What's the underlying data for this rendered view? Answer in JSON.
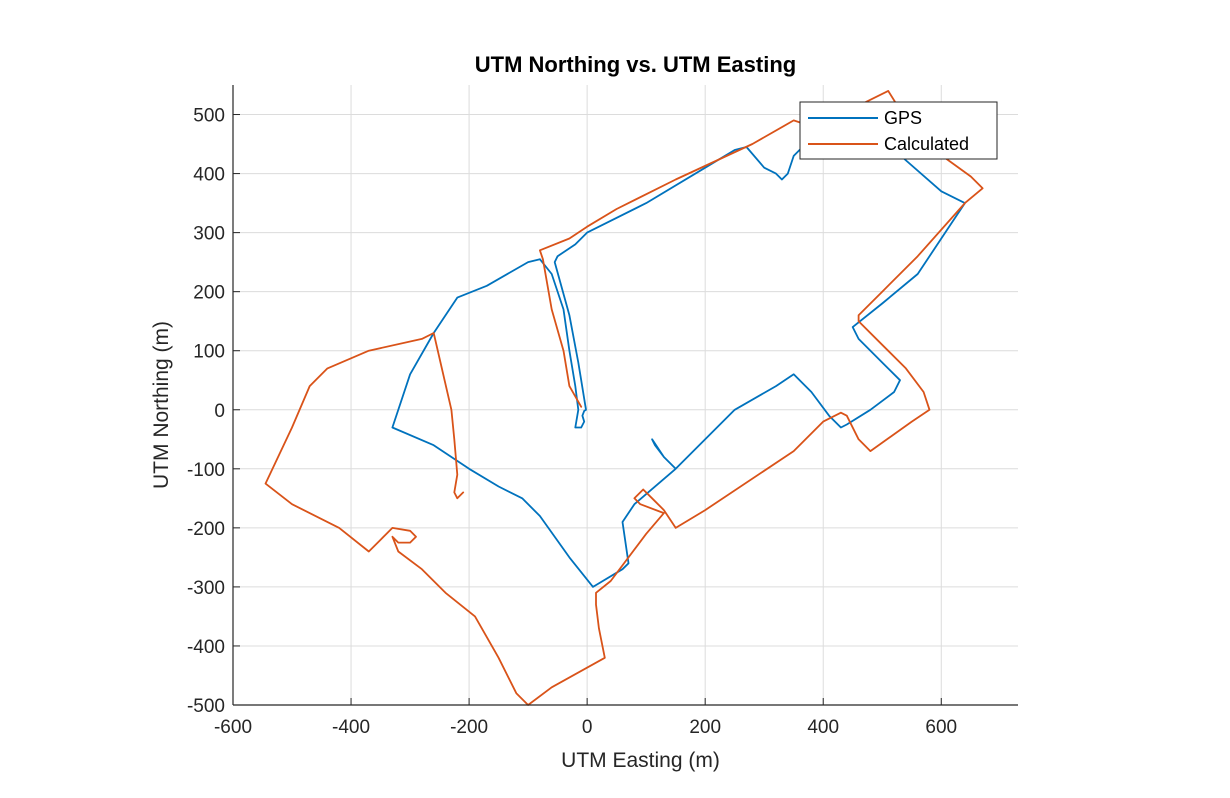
{
  "chart_data": {
    "type": "line",
    "title": "UTM Northing vs. UTM Easting",
    "xlabel": "UTM Easting (m)",
    "ylabel": "UTM Northing (m)",
    "xlim": [
      -600,
      730
    ],
    "ylim": [
      -500,
      550
    ],
    "xticks": [
      -600,
      -400,
      -200,
      0,
      200,
      400,
      600
    ],
    "yticks": [
      -500,
      -400,
      -300,
      -200,
      -100,
      0,
      100,
      200,
      300,
      400,
      500
    ],
    "grid": true,
    "legend_position": "top-right",
    "series": [
      {
        "name": "GPS",
        "color": "#0072BD",
        "points": [
          [
            -10,
            -30
          ],
          [
            -5,
            -20
          ],
          [
            -8,
            -10
          ],
          [
            -5,
            -2
          ],
          [
            -2,
            0
          ],
          [
            -10,
            50
          ],
          [
            -15,
            80
          ],
          [
            -30,
            160
          ],
          [
            -55,
            250
          ],
          [
            -50,
            260
          ],
          [
            -20,
            280
          ],
          [
            0,
            300
          ],
          [
            100,
            350
          ],
          [
            200,
            410
          ],
          [
            250,
            440
          ],
          [
            270,
            445
          ],
          [
            300,
            410
          ],
          [
            320,
            400
          ],
          [
            330,
            390
          ],
          [
            340,
            400
          ],
          [
            350,
            430
          ],
          [
            400,
            480
          ],
          [
            460,
            520
          ],
          [
            520,
            440
          ],
          [
            600,
            370
          ],
          [
            640,
            350
          ],
          [
            620,
            320
          ],
          [
            560,
            230
          ],
          [
            500,
            180
          ],
          [
            450,
            140
          ],
          [
            460,
            120
          ],
          [
            500,
            80
          ],
          [
            530,
            50
          ],
          [
            520,
            30
          ],
          [
            480,
            0
          ],
          [
            440,
            -25
          ],
          [
            430,
            -30
          ],
          [
            410,
            -10
          ],
          [
            380,
            30
          ],
          [
            350,
            60
          ],
          [
            320,
            40
          ],
          [
            250,
            0
          ],
          [
            150,
            -100
          ],
          [
            130,
            -80
          ],
          [
            110,
            -50
          ],
          [
            115,
            -60
          ],
          [
            130,
            -80
          ],
          [
            150,
            -100
          ],
          [
            80,
            -160
          ],
          [
            60,
            -190
          ],
          [
            70,
            -260
          ],
          [
            60,
            -270
          ],
          [
            10,
            -300
          ],
          [
            -30,
            -250
          ],
          [
            -80,
            -180
          ],
          [
            -110,
            -150
          ],
          [
            -150,
            -130
          ],
          [
            -200,
            -100
          ],
          [
            -260,
            -60
          ],
          [
            -330,
            -30
          ],
          [
            -300,
            60
          ],
          [
            -260,
            130
          ],
          [
            -220,
            190
          ],
          [
            -170,
            210
          ],
          [
            -100,
            250
          ],
          [
            -80,
            255
          ],
          [
            -60,
            230
          ],
          [
            -40,
            170
          ],
          [
            -30,
            100
          ],
          [
            -20,
            40
          ],
          [
            -15,
            0
          ],
          [
            -20,
            -30
          ],
          [
            -10,
            -30
          ]
        ]
      },
      {
        "name": "Calculated",
        "color": "#D95319",
        "points": [
          [
            -210,
            -140
          ],
          [
            -220,
            -150
          ],
          [
            -225,
            -140
          ],
          [
            -220,
            -110
          ],
          [
            -225,
            -50
          ],
          [
            -230,
            0
          ],
          [
            -260,
            130
          ],
          [
            -280,
            120
          ],
          [
            -370,
            100
          ],
          [
            -440,
            70
          ],
          [
            -470,
            40
          ],
          [
            -500,
            -30
          ],
          [
            -545,
            -125
          ],
          [
            -500,
            -160
          ],
          [
            -420,
            -200
          ],
          [
            -370,
            -240
          ],
          [
            -350,
            -220
          ],
          [
            -330,
            -200
          ],
          [
            -300,
            -205
          ],
          [
            -290,
            -215
          ],
          [
            -300,
            -225
          ],
          [
            -320,
            -225
          ],
          [
            -330,
            -215
          ],
          [
            -320,
            -240
          ],
          [
            -280,
            -270
          ],
          [
            -240,
            -310
          ],
          [
            -190,
            -350
          ],
          [
            -150,
            -420
          ],
          [
            -120,
            -480
          ],
          [
            -100,
            -500
          ],
          [
            -60,
            -470
          ],
          [
            30,
            -420
          ],
          [
            20,
            -370
          ],
          [
            15,
            -330
          ],
          [
            15,
            -310
          ],
          [
            40,
            -290
          ],
          [
            100,
            -210
          ],
          [
            130,
            -175
          ],
          [
            90,
            -160
          ],
          [
            80,
            -150
          ],
          [
            95,
            -135
          ],
          [
            110,
            -150
          ],
          [
            130,
            -170
          ],
          [
            150,
            -200
          ],
          [
            200,
            -170
          ],
          [
            350,
            -70
          ],
          [
            400,
            -20
          ],
          [
            430,
            -5
          ],
          [
            440,
            -10
          ],
          [
            460,
            -50
          ],
          [
            480,
            -70
          ],
          [
            550,
            -20
          ],
          [
            580,
            0
          ],
          [
            570,
            30
          ],
          [
            540,
            70
          ],
          [
            500,
            110
          ],
          [
            460,
            150
          ],
          [
            460,
            160
          ],
          [
            500,
            200
          ],
          [
            560,
            260
          ],
          [
            640,
            350
          ],
          [
            670,
            375
          ],
          [
            650,
            395
          ],
          [
            560,
            460
          ],
          [
            510,
            540
          ],
          [
            470,
            520
          ],
          [
            380,
            480
          ],
          [
            350,
            490
          ],
          [
            280,
            450
          ],
          [
            150,
            390
          ],
          [
            50,
            340
          ],
          [
            0,
            310
          ],
          [
            -30,
            290
          ],
          [
            -80,
            270
          ],
          [
            -75,
            255
          ],
          [
            -60,
            170
          ],
          [
            -40,
            100
          ],
          [
            -30,
            40
          ],
          [
            -10,
            5
          ]
        ]
      }
    ]
  }
}
